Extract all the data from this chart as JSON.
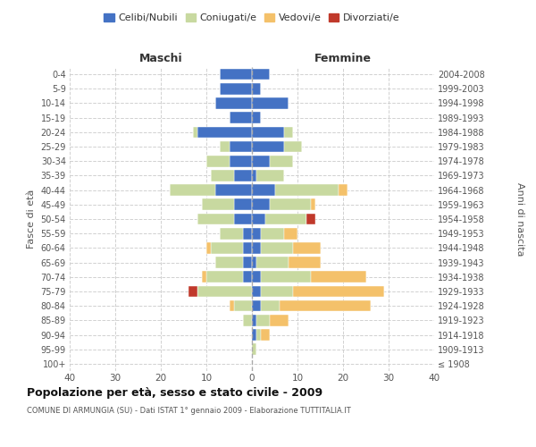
{
  "age_groups": [
    "100+",
    "95-99",
    "90-94",
    "85-89",
    "80-84",
    "75-79",
    "70-74",
    "65-69",
    "60-64",
    "55-59",
    "50-54",
    "45-49",
    "40-44",
    "35-39",
    "30-34",
    "25-29",
    "20-24",
    "15-19",
    "10-14",
    "5-9",
    "0-4"
  ],
  "birth_years": [
    "≤ 1908",
    "1909-1913",
    "1914-1918",
    "1919-1923",
    "1924-1928",
    "1929-1933",
    "1934-1938",
    "1939-1943",
    "1944-1948",
    "1949-1953",
    "1954-1958",
    "1959-1963",
    "1964-1968",
    "1969-1973",
    "1974-1978",
    "1979-1983",
    "1984-1988",
    "1989-1993",
    "1994-1998",
    "1999-2003",
    "2004-2008"
  ],
  "male": {
    "celibi": [
      0,
      0,
      0,
      0,
      0,
      0,
      2,
      2,
      2,
      2,
      4,
      4,
      8,
      4,
      5,
      5,
      12,
      5,
      8,
      7,
      7
    ],
    "coniugati": [
      0,
      0,
      0,
      2,
      4,
      12,
      8,
      6,
      7,
      5,
      8,
      7,
      10,
      5,
      5,
      2,
      1,
      0,
      0,
      0,
      0
    ],
    "vedovi": [
      0,
      0,
      0,
      0,
      1,
      0,
      1,
      0,
      1,
      0,
      0,
      0,
      0,
      0,
      0,
      0,
      0,
      0,
      0,
      0,
      0
    ],
    "divorziati": [
      0,
      0,
      0,
      0,
      0,
      2,
      0,
      0,
      0,
      0,
      0,
      0,
      0,
      0,
      0,
      0,
      0,
      0,
      0,
      0,
      0
    ]
  },
  "female": {
    "nubili": [
      0,
      0,
      1,
      1,
      2,
      2,
      2,
      1,
      2,
      2,
      3,
      4,
      5,
      1,
      4,
      7,
      7,
      2,
      8,
      2,
      4
    ],
    "coniugate": [
      0,
      1,
      1,
      3,
      4,
      7,
      11,
      7,
      7,
      5,
      9,
      9,
      14,
      6,
      5,
      4,
      2,
      0,
      0,
      0,
      0
    ],
    "vedove": [
      0,
      0,
      2,
      4,
      20,
      20,
      12,
      7,
      6,
      3,
      0,
      1,
      2,
      0,
      0,
      0,
      0,
      0,
      0,
      0,
      0
    ],
    "divorziate": [
      0,
      0,
      0,
      0,
      0,
      0,
      0,
      0,
      0,
      0,
      2,
      0,
      0,
      0,
      0,
      0,
      0,
      0,
      0,
      0,
      0
    ]
  },
  "colors": {
    "celibi_nubili": "#4472c4",
    "coniugati": "#c8d9a0",
    "vedovi": "#f4c16a",
    "divorziati": "#c0392b"
  },
  "title": "Popolazione per età, sesso e stato civile - 2009",
  "subtitle": "COMUNE DI ARMUNGIA (SU) - Dati ISTAT 1° gennaio 2009 - Elaborazione TUTTITALIA.IT",
  "xlabel_left": "Maschi",
  "xlabel_right": "Femmine",
  "ylabel_left": "Fasce di età",
  "ylabel_right": "Anni di nascita",
  "xlim": 40,
  "legend_labels": [
    "Celibi/Nubili",
    "Coniugati/e",
    "Vedovi/e",
    "Divorziati/e"
  ],
  "background_color": "#ffffff",
  "grid_color": "#cccccc"
}
